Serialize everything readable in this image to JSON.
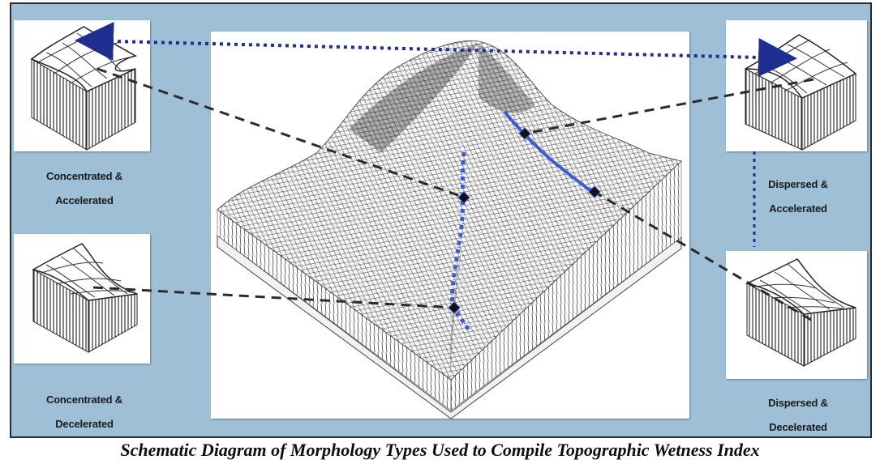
{
  "caption": "Schematic Diagram of Morphology Types Used to Compile Topographic Wetness Index",
  "types": {
    "top_left": {
      "line1": "Concentrated &",
      "line2": "Accelerated"
    },
    "bottom_left": {
      "line1": "Concentrated &",
      "line2": "Decelerated"
    },
    "top_right": {
      "line1": "Dispersed &",
      "line2": "Accelerated"
    },
    "bottom_right": {
      "line1": "Dispersed &",
      "line2": "Decelerated"
    }
  },
  "colors": {
    "panel": "#9fbfd6",
    "dashed_connector": "#2b2b2b",
    "flow_path": "#3b5bd6",
    "dotted_arrow": "#1f2f8f"
  }
}
